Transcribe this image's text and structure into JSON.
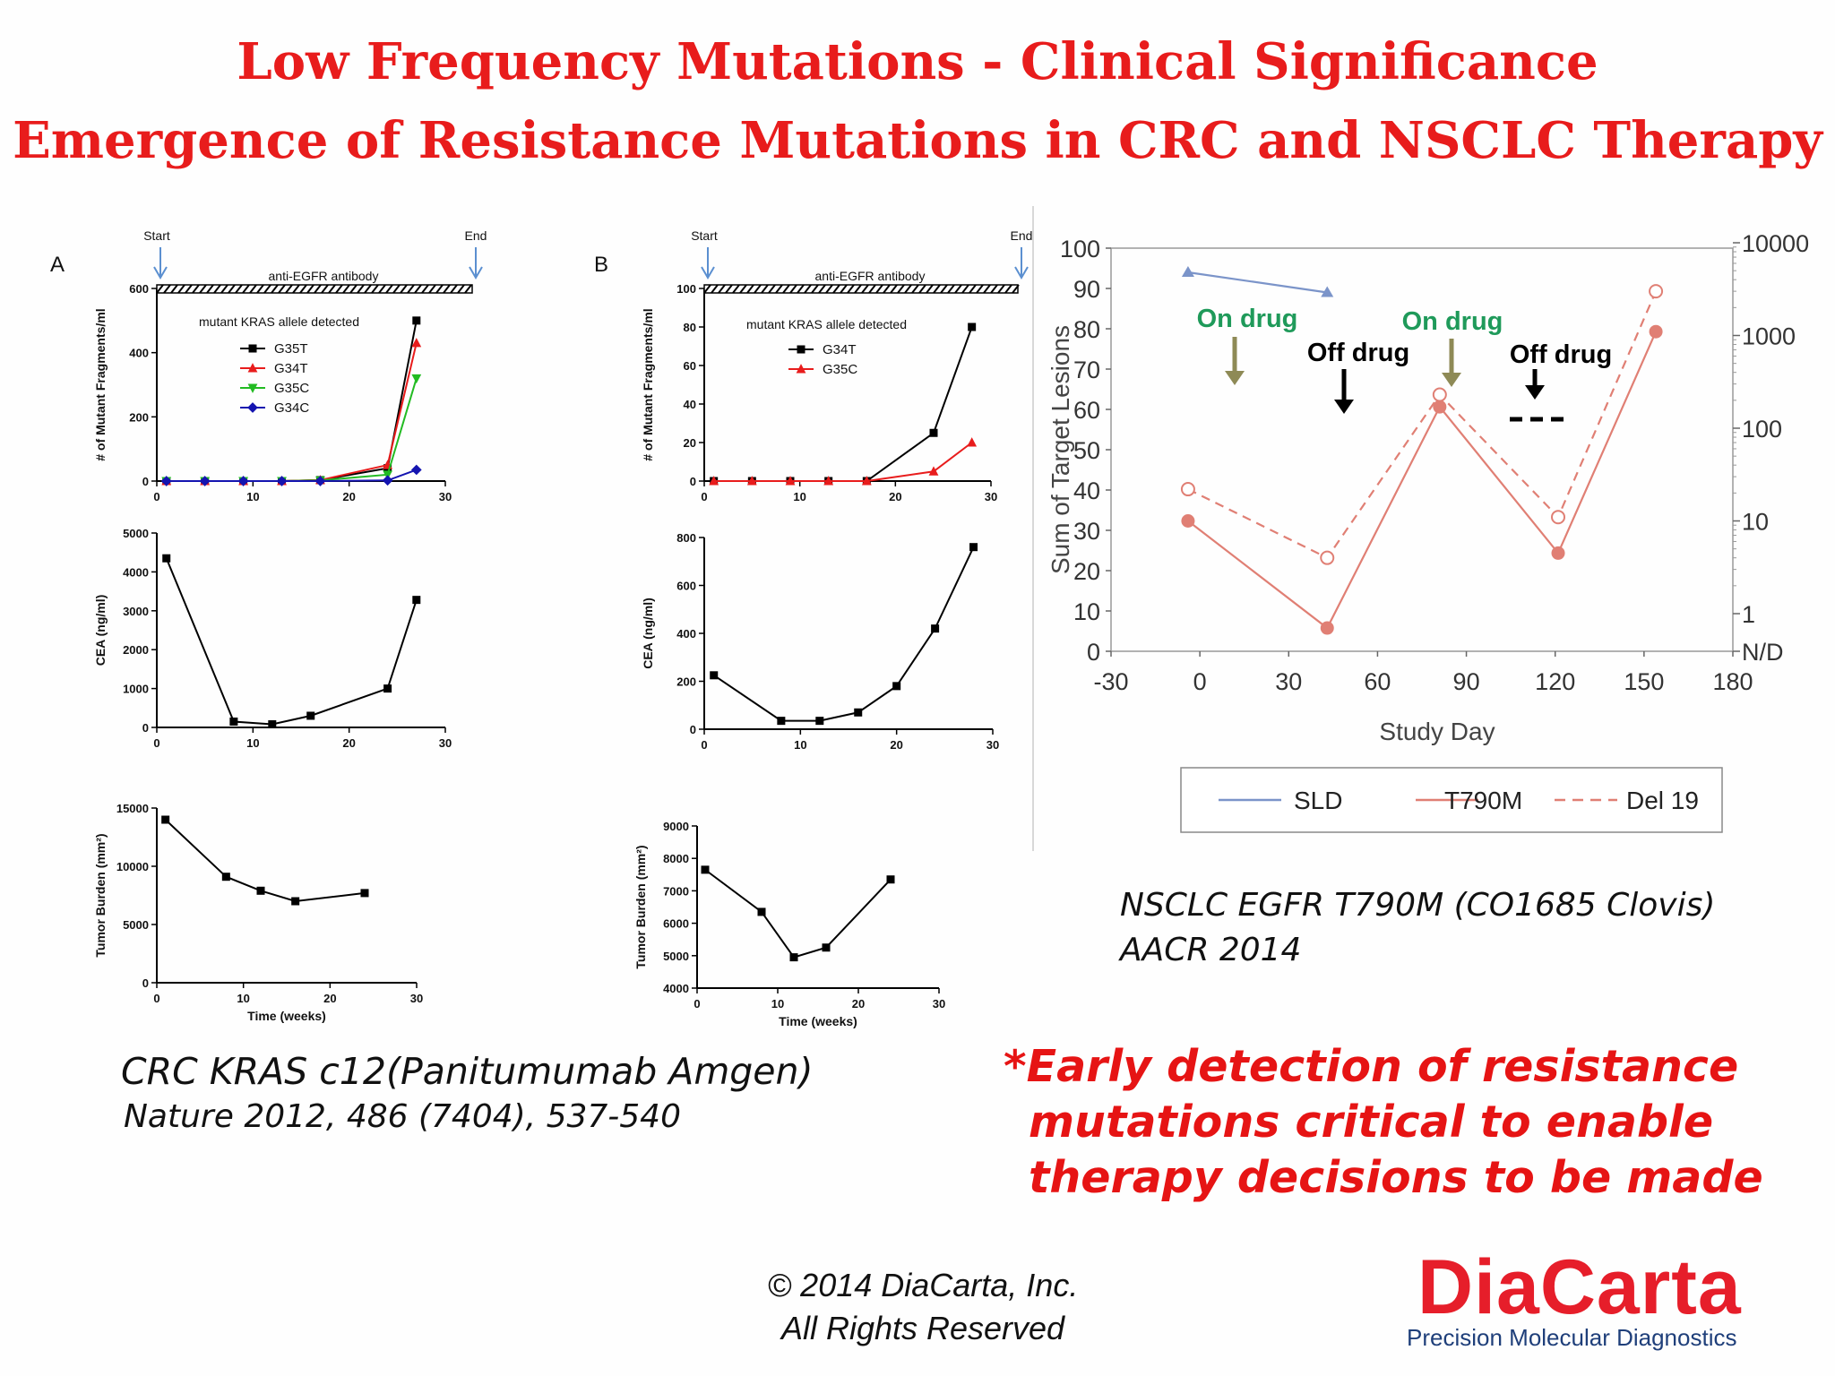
{
  "slide": {
    "title_line1": "Low Frequency Mutations - Clinical Significance",
    "title_line2": "Emergence of Resistance Mutations in CRC and NSCLC Therapy",
    "crc_caption": "CRC KRAS c12(Panitumumab Amgen)",
    "crc_citation": "Nature 2012, 486 (7404), 537-540",
    "nsclc_caption": "NSCLC EGFR T790M (CO1685 Clovis)",
    "nsclc_citation": "AACR 2014",
    "note_line1": "*Early detection of resistance",
    "note_line2": "mutations critical to enable",
    "note_line3": "therapy decisions to be made",
    "copyright_line1": "© 2014 DiaCarta, Inc.",
    "copyright_line2": "All Rights Reserved",
    "logo_name": "DiaCarta",
    "logo_tagline": "Precision Molecular Diagnostics",
    "colors": {
      "title": "#e81c1c",
      "note": "#e61414",
      "logo": "#e61e2a",
      "tagline": "#1f3f7a"
    }
  },
  "chart_data": [
    {
      "panel": "A",
      "type": "line",
      "start_label": "Start",
      "end_label": "End",
      "treatment_label": "anti-EGFR antibody",
      "legend_title": "mutant KRAS allele detected",
      "ylabel": "# of Mutant Fragments/ml",
      "ylim": [
        0,
        600
      ],
      "xlim": [
        0,
        30
      ],
      "yticks": [
        "0",
        "200",
        "400",
        "600"
      ],
      "xticks": [
        "0",
        "10",
        "20",
        "30"
      ],
      "series": [
        {
          "name": "G35T",
          "color": "#000000",
          "marker": "square",
          "points": [
            [
              1,
              0
            ],
            [
              5,
              0
            ],
            [
              9,
              0
            ],
            [
              13,
              0
            ],
            [
              17,
              3
            ],
            [
              24,
              40
            ],
            [
              27,
              500
            ]
          ]
        },
        {
          "name": "G34T",
          "color": "#e81c1c",
          "marker": "triangle",
          "points": [
            [
              1,
              0
            ],
            [
              5,
              0
            ],
            [
              9,
              0
            ],
            [
              13,
              0
            ],
            [
              17,
              3
            ],
            [
              24,
              50
            ],
            [
              27,
              430
            ]
          ]
        },
        {
          "name": "G35C",
          "color": "#22bb22",
          "marker": "triangle-down",
          "points": [
            [
              1,
              0
            ],
            [
              5,
              0
            ],
            [
              9,
              0
            ],
            [
              13,
              0
            ],
            [
              17,
              2
            ],
            [
              24,
              20
            ],
            [
              27,
              320
            ]
          ]
        },
        {
          "name": "G34C",
          "color": "#1414b0",
          "marker": "diamond",
          "points": [
            [
              1,
              0
            ],
            [
              5,
              0
            ],
            [
              9,
              0
            ],
            [
              13,
              0
            ],
            [
              17,
              0
            ],
            [
              24,
              2
            ],
            [
              27,
              35
            ]
          ]
        }
      ]
    },
    {
      "panel": "A",
      "type": "line",
      "ylabel": "CEA (ng/ml)",
      "ylim": [
        0,
        5000
      ],
      "xlim": [
        0,
        30
      ],
      "yticks": [
        "0",
        "1000",
        "2000",
        "3000",
        "4000",
        "5000"
      ],
      "xticks": [
        "0",
        "10",
        "20",
        "30"
      ],
      "series": [
        {
          "color": "#000000",
          "marker": "square",
          "points": [
            [
              1,
              4350
            ],
            [
              8,
              150
            ],
            [
              12,
              80
            ],
            [
              16,
              300
            ],
            [
              24,
              1000
            ],
            [
              27,
              3280
            ]
          ]
        }
      ]
    },
    {
      "panel": "A",
      "type": "line",
      "ylabel": "Tumor Burden (mm²)",
      "xlabel": "Time (weeks)",
      "ylim": [
        0,
        15000
      ],
      "xlim": [
        0,
        30
      ],
      "yticks": [
        "0",
        "5000",
        "10000",
        "15000"
      ],
      "xticks": [
        "0",
        "10",
        "20",
        "30"
      ],
      "series": [
        {
          "color": "#000000",
          "marker": "square",
          "points": [
            [
              1,
              14000
            ],
            [
              8,
              9100
            ],
            [
              12,
              7900
            ],
            [
              16,
              7000
            ],
            [
              24,
              7700
            ]
          ]
        }
      ]
    },
    {
      "panel": "B",
      "type": "line",
      "start_label": "Start",
      "end_label": "End",
      "treatment_label": "anti-EGFR antibody",
      "legend_title": "mutant KRAS allele detected",
      "ylabel": "# of Mutant Fragments/ml",
      "ylim": [
        0,
        100
      ],
      "xlim": [
        0,
        30
      ],
      "yticks": [
        "0",
        "20",
        "40",
        "60",
        "80",
        "100"
      ],
      "xticks": [
        "0",
        "10",
        "20",
        "30"
      ],
      "series": [
        {
          "name": "G34T",
          "color": "#000000",
          "marker": "square",
          "points": [
            [
              1,
              0
            ],
            [
              5,
              0
            ],
            [
              9,
              0
            ],
            [
              13,
              0
            ],
            [
              17,
              0
            ],
            [
              24,
              25
            ],
            [
              28,
              80
            ]
          ]
        },
        {
          "name": "G35C",
          "color": "#e81c1c",
          "marker": "triangle",
          "points": [
            [
              1,
              0
            ],
            [
              5,
              0
            ],
            [
              9,
              0
            ],
            [
              13,
              0
            ],
            [
              17,
              0
            ],
            [
              24,
              5
            ],
            [
              28,
              20
            ]
          ]
        }
      ]
    },
    {
      "panel": "B",
      "type": "line",
      "ylabel": "CEA (ng/ml)",
      "ylim": [
        0,
        800
      ],
      "xlim": [
        0,
        30
      ],
      "yticks": [
        "0",
        "200",
        "400",
        "600",
        "800"
      ],
      "xticks": [
        "0",
        "10",
        "20",
        "30"
      ],
      "series": [
        {
          "color": "#000000",
          "marker": "square",
          "points": [
            [
              1,
              225
            ],
            [
              8,
              35
            ],
            [
              12,
              35
            ],
            [
              16,
              70
            ],
            [
              20,
              180
            ],
            [
              24,
              420
            ],
            [
              28,
              760
            ]
          ]
        }
      ]
    },
    {
      "panel": "B",
      "type": "line",
      "ylabel": "Tumor Burden (mm²)",
      "xlabel": "Time (weeks)",
      "ylim": [
        4000,
        9000
      ],
      "xlim": [
        0,
        30
      ],
      "yticks": [
        "4000",
        "5000",
        "6000",
        "7000",
        "8000",
        "9000"
      ],
      "xticks": [
        "0",
        "10",
        "20",
        "30"
      ],
      "series": [
        {
          "color": "#000000",
          "marker": "square",
          "points": [
            [
              1,
              7650
            ],
            [
              8,
              6350
            ],
            [
              12,
              4950
            ],
            [
              16,
              5250
            ],
            [
              24,
              7350
            ]
          ]
        }
      ]
    },
    {
      "type": "line",
      "xlabel": "Study Day",
      "ylabel": "Sum of Target Lesions",
      "xlim": [
        -30,
        180
      ],
      "ylim": [
        0,
        100
      ],
      "xticks": [
        "-30",
        "0",
        "30",
        "60",
        "90",
        "120",
        "150",
        "180"
      ],
      "yticks": [
        "0",
        "10",
        "20",
        "30",
        "40",
        "50",
        "60",
        "70",
        "80",
        "90",
        "100"
      ],
      "y2ticks": [
        "N/D",
        "1",
        "10",
        "100",
        "1000",
        "10000"
      ],
      "y2_scale": "log",
      "legend_position": "bottom",
      "annotations": [
        "On drug",
        "Off drug",
        "On drug",
        "Off drug"
      ],
      "annotation_colors": {
        "on": "#1f9a5a",
        "off": "#000000",
        "on_arrow": "#8e8a56"
      },
      "series": [
        {
          "name": "SLD",
          "color": "#7b94c9",
          "style": "solid",
          "axis": "left",
          "points": [
            [
              -4,
              94
            ],
            [
              43,
              89
            ]
          ]
        },
        {
          "name": "T790M",
          "color": "#e07f74",
          "style": "solid",
          "axis": "right",
          "points": [
            [
              -4,
              10
            ],
            [
              43,
              0.7
            ],
            [
              81,
              170
            ],
            [
              121,
              4.5
            ],
            [
              154,
              1100
            ]
          ]
        },
        {
          "name": "Del 19",
          "color": "#e07f74",
          "style": "dashed",
          "axis": "right",
          "points": [
            [
              -4,
              22
            ],
            [
              43,
              4
            ],
            [
              81,
              230
            ],
            [
              121,
              11
            ],
            [
              154,
              3000
            ]
          ]
        }
      ]
    }
  ]
}
